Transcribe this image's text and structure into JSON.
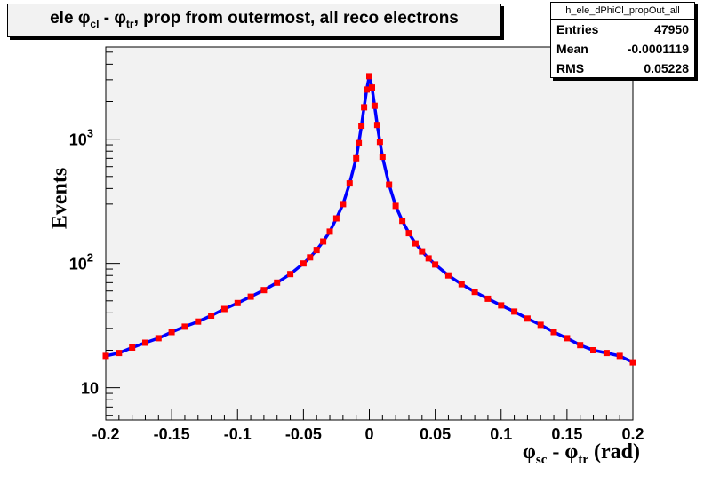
{
  "title": {
    "prefix": "ele ",
    "phi": "φ",
    "sub1": "cl",
    "mid": " - ",
    "sub2": "tr",
    "suffix": ", prop from outermost, all reco electrons"
  },
  "stats": {
    "name": "h_ele_dPhiCl_propOut_all",
    "rows": [
      {
        "key": "Entries",
        "value": "47950"
      },
      {
        "key": "Mean",
        "value": "-0.0001119"
      },
      {
        "key": "RMS",
        "value": "0.05228"
      }
    ]
  },
  "y_axis_label": "Events",
  "x_axis_label": {
    "phi": "φ",
    "sub1": "sc",
    "mid": " - ",
    "sub2": "tr",
    "suffix": " (rad)"
  },
  "chart_data": {
    "type": "line",
    "x_range": [
      -0.2,
      0.2
    ],
    "y_range": [
      5.5,
      5500
    ],
    "y_scale": "log",
    "grid": false,
    "x_ticks": [
      {
        "value": -0.2,
        "label": "-0.2"
      },
      {
        "value": -0.15,
        "label": "-0.15"
      },
      {
        "value": -0.1,
        "label": "-0.1"
      },
      {
        "value": -0.05,
        "label": "-0.05"
      },
      {
        "value": 0,
        "label": "0"
      },
      {
        "value": 0.05,
        "label": "0.05"
      },
      {
        "value": 0.1,
        "label": "0.1"
      },
      {
        "value": 0.15,
        "label": "0.15"
      },
      {
        "value": 0.2,
        "label": "0.2"
      }
    ],
    "y_ticks": [
      {
        "value": 10,
        "base": "10",
        "exp": ""
      },
      {
        "value": 100,
        "base": "10",
        "exp": "2"
      },
      {
        "value": 1000,
        "base": "10",
        "exp": "3"
      }
    ],
    "series": [
      {
        "color": "#0000ff",
        "style": "step",
        "x": [
          -0.2,
          -0.19,
          -0.18,
          -0.17,
          -0.16,
          -0.15,
          -0.14,
          -0.13,
          -0.12,
          -0.11,
          -0.1,
          -0.09,
          -0.08,
          -0.07,
          -0.06,
          -0.05,
          -0.045,
          -0.04,
          -0.035,
          -0.03,
          -0.025,
          -0.02,
          -0.015,
          -0.01,
          -0.008,
          -0.006,
          -0.004,
          -0.002,
          0,
          0.002,
          0.004,
          0.006,
          0.008,
          0.01,
          0.015,
          0.02,
          0.025,
          0.03,
          0.035,
          0.04,
          0.045,
          0.05,
          0.06,
          0.07,
          0.08,
          0.09,
          0.1,
          0.11,
          0.12,
          0.13,
          0.14,
          0.15,
          0.16,
          0.17,
          0.18,
          0.19,
          0.2
        ],
        "y": [
          18,
          19,
          21,
          23,
          25,
          28,
          31,
          34,
          38,
          43,
          48,
          54,
          61,
          70,
          82,
          100,
          112,
          128,
          150,
          180,
          230,
          300,
          440,
          700,
          930,
          1280,
          1800,
          2500,
          3200,
          2600,
          1850,
          1300,
          950,
          720,
          430,
          290,
          220,
          175,
          145,
          125,
          110,
          98,
          80,
          68,
          59,
          52,
          46,
          41,
          36,
          32,
          28,
          25,
          22,
          20,
          19,
          18,
          16
        ]
      },
      {
        "color": "#ff0000",
        "style": "markers",
        "x": [
          -0.2,
          -0.19,
          -0.18,
          -0.17,
          -0.16,
          -0.15,
          -0.14,
          -0.13,
          -0.12,
          -0.11,
          -0.1,
          -0.09,
          -0.08,
          -0.07,
          -0.06,
          -0.05,
          -0.045,
          -0.04,
          -0.035,
          -0.03,
          -0.025,
          -0.02,
          -0.015,
          -0.01,
          -0.008,
          -0.006,
          -0.004,
          -0.002,
          0,
          0.002,
          0.004,
          0.006,
          0.008,
          0.01,
          0.015,
          0.02,
          0.025,
          0.03,
          0.035,
          0.04,
          0.045,
          0.05,
          0.06,
          0.07,
          0.08,
          0.09,
          0.1,
          0.11,
          0.12,
          0.13,
          0.14,
          0.15,
          0.16,
          0.17,
          0.18,
          0.19,
          0.2
        ],
        "y": [
          18,
          19,
          21,
          23,
          25,
          28,
          31,
          34,
          38,
          43,
          48,
          54,
          61,
          70,
          82,
          100,
          112,
          128,
          150,
          180,
          230,
          300,
          440,
          700,
          930,
          1280,
          1800,
          2500,
          3200,
          2600,
          1850,
          1300,
          950,
          720,
          430,
          290,
          220,
          175,
          145,
          125,
          110,
          98,
          80,
          68,
          59,
          52,
          46,
          41,
          36,
          32,
          28,
          25,
          22,
          20,
          19,
          18,
          16
        ]
      }
    ]
  }
}
